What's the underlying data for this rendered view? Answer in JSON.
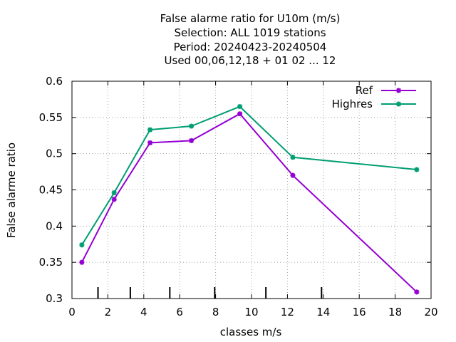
{
  "chart_data": {
    "type": "line",
    "title_lines": [
      "False alarme ratio  for U10m (m/s)",
      "Selection: ALL   1019 stations",
      "Period: 20240423-20240504",
      "Used  00,06,12,18 + 01 02 ... 12"
    ],
    "xlabel": "classes m/s",
    "ylabel": "False alarme ratio",
    "xlim": [
      0,
      20
    ],
    "ylim": [
      0.3,
      0.6
    ],
    "xticks": [
      0,
      2,
      4,
      6,
      8,
      10,
      12,
      14,
      16,
      18,
      20
    ],
    "yticks": [
      0.3,
      0.35,
      0.4,
      0.45,
      0.5,
      0.55,
      0.6
    ],
    "xtick_labels": [
      "0",
      "2",
      "4",
      "6",
      "8",
      "10",
      "12",
      "14",
      "16",
      "18",
      "20"
    ],
    "ytick_labels": [
      "0.3",
      "0.35",
      "0.4",
      "0.45",
      "0.5",
      "0.55",
      "0.6"
    ],
    "class_boundaries": [
      1.45,
      3.25,
      5.45,
      7.95,
      10.8,
      13.9
    ],
    "grid": true,
    "legend_position": "top-right",
    "series": [
      {
        "name": "Ref",
        "color": "#9400d3",
        "x": [
          0.55,
          2.35,
          4.35,
          6.65,
          9.35,
          12.3,
          19.2
        ],
        "y": [
          0.35,
          0.437,
          0.515,
          0.518,
          0.555,
          0.47,
          0.309
        ]
      },
      {
        "name": "Highres",
        "color": "#009e73",
        "x": [
          0.55,
          2.35,
          4.35,
          6.65,
          9.35,
          12.3,
          19.2
        ],
        "y": [
          0.374,
          0.446,
          0.533,
          0.538,
          0.565,
          0.495,
          0.478
        ]
      }
    ]
  }
}
